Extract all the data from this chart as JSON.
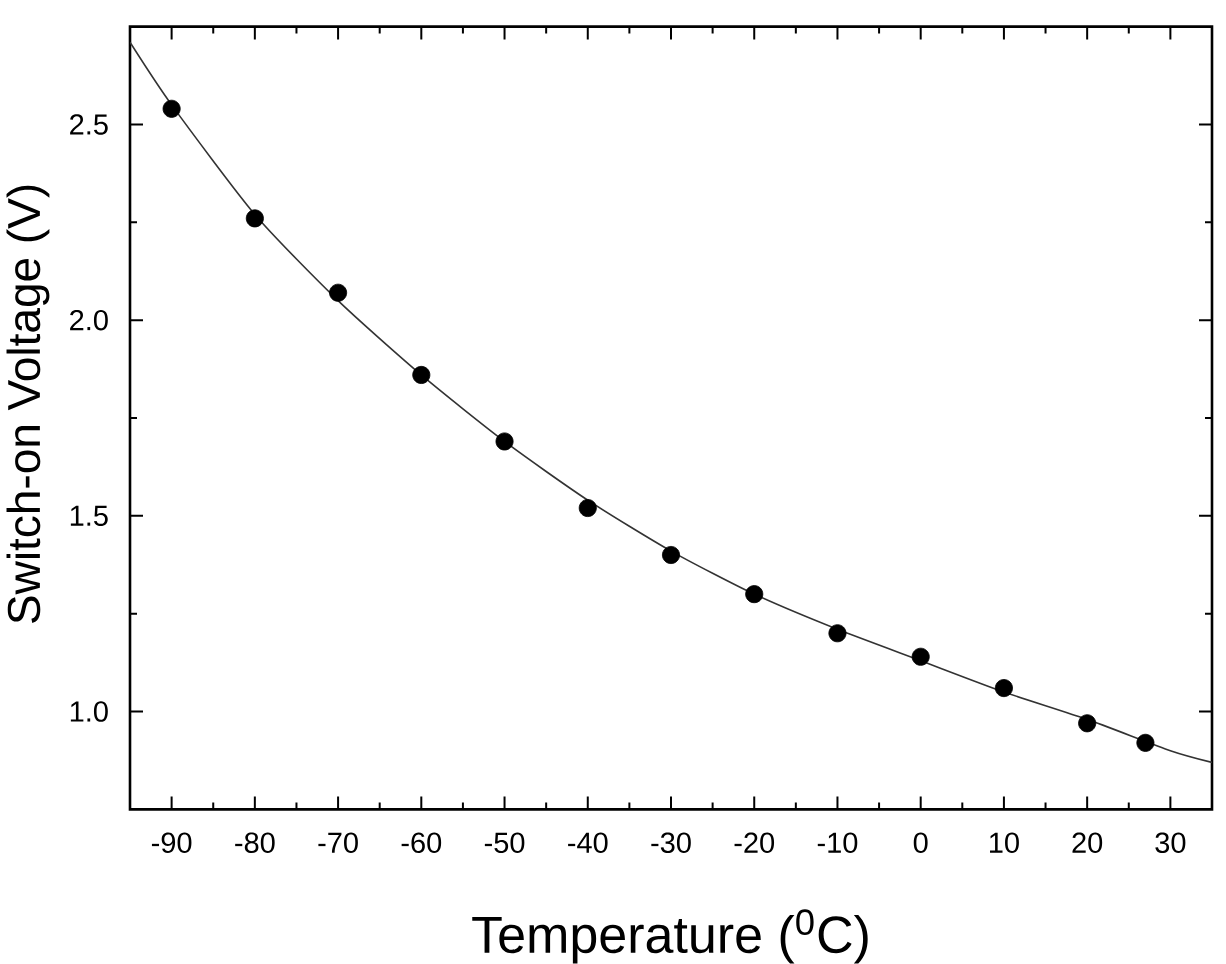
{
  "chart_data": {
    "type": "scatter",
    "xlabel": "Temperature ($^{0}$C)",
    "ylabel": "Switch-on Voltage (V)",
    "x": [
      -90,
      -80,
      -70,
      -60,
      -50,
      -40,
      -30,
      -20,
      -10,
      0,
      10,
      20,
      27
    ],
    "series": [
      {
        "color": "#000000",
        "values": [
          2.54,
          2.26,
          2.07,
          1.86,
          1.69,
          1.52,
          1.4,
          1.3,
          1.2,
          1.14,
          1.06,
          0.97,
          0.92
        ]
      },
      {
        "type": "line",
        "marker": "none",
        "color": "#333333",
        "x": [
          -95,
          -90,
          -80,
          -70,
          -60,
          -50,
          -40,
          -30,
          -20,
          -10,
          0,
          10,
          20,
          30,
          35
        ],
        "values": [
          2.71,
          2.55,
          2.27,
          2.05,
          1.86,
          1.69,
          1.54,
          1.41,
          1.3,
          1.21,
          1.13,
          1.05,
          0.98,
          0.9,
          0.87
        ]
      }
    ],
    "marker": "circle",
    "xlim": [
      -95,
      35
    ],
    "ylim": [
      0.75,
      2.75
    ],
    "xticks": [
      -90,
      {
        "value": -85,
        "label": null
      },
      -80,
      {
        "value": -75,
        "label": null
      },
      -70,
      {
        "value": -65,
        "label": null
      },
      -60,
      {
        "value": -55,
        "label": null
      },
      -50,
      {
        "value": -45,
        "label": null
      },
      -40,
      {
        "value": -35,
        "label": null
      },
      -30,
      {
        "value": -25,
        "label": null
      },
      -20,
      {
        "value": -15,
        "label": null
      },
      -10,
      {
        "value": -5,
        "label": null
      },
      0,
      {
        "value": 5,
        "label": null
      },
      10,
      {
        "value": 15,
        "label": null
      },
      20,
      {
        "value": 25,
        "label": null
      },
      30
    ],
    "yticks": [
      {
        "value": 1.0,
        "label": "1.0"
      },
      {
        "value": 1.25,
        "label": null
      },
      1.5,
      {
        "value": 1.75,
        "label": null
      },
      {
        "value": 2.0,
        "label": "2.0"
      },
      {
        "value": 2.25,
        "label": null
      },
      2.5
    ]
  }
}
